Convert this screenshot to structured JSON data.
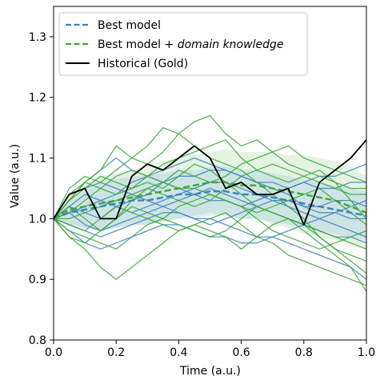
{
  "chart_data": {
    "type": "line",
    "xlabel": "Time (a.u.)",
    "ylabel": "Value (a.u.)",
    "xlim": [
      0.0,
      1.0
    ],
    "ylim": [
      0.8,
      1.35
    ],
    "xticks": [
      "0.0",
      "0.2",
      "0.4",
      "0.6",
      "0.8",
      "1.0"
    ],
    "yticks": [
      "0.8",
      "0.9",
      "1.0",
      "1.1",
      "1.2",
      "1.3"
    ],
    "grid": false,
    "legend_position": "top-left",
    "legend": [
      {
        "label": "Best model",
        "style": "dashed",
        "color": "#3b82c4"
      },
      {
        "label_main": "Best model + ",
        "label_italic": "domain knowledge",
        "style": "dashed",
        "color": "#3aa83a"
      },
      {
        "label": "Historical (Gold)",
        "style": "solid",
        "color": "#000000"
      }
    ],
    "colors": {
      "best_model": "#3b82c4",
      "best_model_domain": "#3aa83a",
      "historical": "#000000",
      "band_blue": "#9dc3e6",
      "band_green": "#a6d8a0"
    },
    "x": [
      0.0,
      0.05,
      0.1,
      0.15,
      0.2,
      0.25,
      0.3,
      0.35,
      0.4,
      0.45,
      0.5,
      0.55,
      0.6,
      0.65,
      0.7,
      0.75,
      0.8,
      0.85,
      0.9,
      0.95,
      1.0
    ],
    "series": [
      {
        "name": "Best model",
        "role": "mean",
        "values": [
          1.0,
          1.01,
          1.015,
          1.02,
          1.025,
          1.03,
          1.03,
          1.035,
          1.04,
          1.04,
          1.045,
          1.045,
          1.04,
          1.04,
          1.035,
          1.03,
          1.025,
          1.02,
          1.015,
          1.01,
          1.005
        ]
      },
      {
        "name": "Best model + domain knowledge",
        "role": "mean",
        "values": [
          1.0,
          1.015,
          1.02,
          1.025,
          1.03,
          1.035,
          1.04,
          1.045,
          1.05,
          1.055,
          1.06,
          1.06,
          1.055,
          1.055,
          1.05,
          1.045,
          1.04,
          1.035,
          1.03,
          1.02,
          1.01
        ]
      },
      {
        "name": "Historical (Gold)",
        "role": "actual",
        "values": [
          1.0,
          1.04,
          1.05,
          1.0,
          1.0,
          1.07,
          1.09,
          1.08,
          1.1,
          1.12,
          1.1,
          1.05,
          1.06,
          1.04,
          1.04,
          1.05,
          0.99,
          1.06,
          1.08,
          1.1,
          1.13
        ]
      }
    ],
    "band_blue": {
      "lower": [
        1.0,
        0.99,
        0.985,
        0.98,
        0.985,
        0.99,
        0.99,
        0.995,
        1.0,
        1.0,
        1.005,
        1.005,
        1.0,
        1.0,
        0.995,
        0.99,
        0.985,
        0.98,
        0.975,
        0.97,
        0.965
      ],
      "upper": [
        1.0,
        1.03,
        1.045,
        1.06,
        1.065,
        1.07,
        1.07,
        1.075,
        1.08,
        1.08,
        1.085,
        1.085,
        1.08,
        1.08,
        1.075,
        1.07,
        1.065,
        1.06,
        1.055,
        1.05,
        1.045
      ]
    },
    "band_green": {
      "lower": [
        1.0,
        0.99,
        0.985,
        0.98,
        0.985,
        0.99,
        0.99,
        0.995,
        1.0,
        1.005,
        1.01,
        1.005,
        1.0,
        1.0,
        0.99,
        0.985,
        0.975,
        0.97,
        0.965,
        0.955,
        0.95
      ],
      "upper": [
        1.0,
        1.04,
        1.055,
        1.07,
        1.075,
        1.08,
        1.09,
        1.095,
        1.1,
        1.105,
        1.11,
        1.115,
        1.11,
        1.11,
        1.11,
        1.105,
        1.105,
        1.1,
        1.095,
        1.085,
        1.07
      ]
    },
    "samples": [
      {
        "group": "Best model",
        "values": [
          1.0,
          1.01,
          1.02,
          1.03,
          1.04,
          1.06,
          1.07,
          1.08,
          1.09,
          1.1,
          1.09,
          1.08,
          1.07,
          1.06,
          1.06,
          1.05,
          1.06,
          1.05,
          1.05,
          1.06,
          1.06
        ]
      },
      {
        "group": "Best model",
        "values": [
          1.0,
          1.03,
          1.06,
          1.08,
          1.1,
          1.08,
          1.07,
          1.06,
          1.07,
          1.07,
          1.08,
          1.08,
          1.07,
          1.06,
          1.05,
          1.04,
          1.02,
          1.01,
          1.01,
          1.0,
          1.0
        ]
      },
      {
        "group": "Best model",
        "values": [
          1.0,
          0.99,
          0.98,
          0.97,
          0.98,
          0.99,
          1.0,
          1.01,
          1.01,
          1.0,
          1.0,
          0.99,
          0.98,
          0.97,
          0.97,
          0.96,
          0.95,
          0.94,
          0.93,
          0.92,
          0.9
        ]
      },
      {
        "group": "Best model",
        "values": [
          1.0,
          1.02,
          1.01,
          1.0,
          1.02,
          1.03,
          1.04,
          1.06,
          1.05,
          1.04,
          1.03,
          1.03,
          1.02,
          1.03,
          1.04,
          1.05,
          1.06,
          1.07,
          1.07,
          1.08,
          1.09
        ]
      },
      {
        "group": "Best model",
        "values": [
          1.0,
          0.98,
          0.96,
          0.95,
          0.96,
          0.97,
          0.98,
          0.99,
          0.99,
          0.98,
          0.97,
          0.97,
          0.96,
          0.96,
          0.97,
          0.98,
          0.99,
          1.0,
          1.01,
          1.02,
          1.03
        ]
      },
      {
        "group": "Best model",
        "values": [
          1.0,
          1.04,
          1.05,
          1.06,
          1.05,
          1.04,
          1.03,
          1.02,
          1.03,
          1.04,
          1.05,
          1.04,
          1.03,
          1.02,
          1.01,
          1.0,
          0.99,
          0.98,
          0.97,
          0.97,
          0.96
        ]
      },
      {
        "group": "Best model",
        "values": [
          1.0,
          1.01,
          0.99,
          0.98,
          0.99,
          1.0,
          1.01,
          1.02,
          1.01,
          1.0,
          0.99,
          1.0,
          1.01,
          1.02,
          1.03,
          1.03,
          1.02,
          1.02,
          1.03,
          1.03,
          1.02
        ]
      },
      {
        "group": "Best model",
        "values": [
          1.0,
          1.02,
          1.04,
          1.03,
          1.02,
          1.01,
          1.02,
          1.03,
          1.04,
          1.05,
          1.06,
          1.06,
          1.05,
          1.04,
          1.03,
          1.02,
          1.01,
          1.0,
          0.99,
          0.98,
          0.97
        ]
      },
      {
        "group": "Best model + domain knowledge",
        "values": [
          1.0,
          1.03,
          1.06,
          1.08,
          1.12,
          1.1,
          1.09,
          1.11,
          1.14,
          1.16,
          1.17,
          1.14,
          1.12,
          1.13,
          1.11,
          1.09,
          1.08,
          1.07,
          1.06,
          1.05,
          1.05
        ]
      },
      {
        "group": "Best model + domain knowledge",
        "values": [
          1.0,
          1.05,
          1.07,
          1.06,
          1.08,
          1.1,
          1.12,
          1.15,
          1.14,
          1.12,
          1.1,
          1.09,
          1.08,
          1.06,
          1.04,
          1.02,
          1.0,
          0.97,
          0.95,
          0.93,
          0.91
        ]
      },
      {
        "group": "Best model + domain knowledge",
        "values": [
          1.0,
          0.97,
          0.95,
          0.92,
          0.9,
          0.92,
          0.94,
          0.96,
          0.98,
          0.99,
          0.98,
          0.97,
          0.95,
          0.97,
          0.99,
          1.0,
          0.98,
          0.96,
          0.94,
          0.92,
          0.88
        ]
      },
      {
        "group": "Best model + domain knowledge",
        "values": [
          1.0,
          1.02,
          1.0,
          0.98,
          1.0,
          1.03,
          1.05,
          1.06,
          1.08,
          1.07,
          1.06,
          1.07,
          1.09,
          1.1,
          1.11,
          1.12,
          1.1,
          1.09,
          1.08,
          1.07,
          1.06
        ]
      },
      {
        "group": "Best model + domain knowledge",
        "values": [
          1.0,
          0.98,
          0.97,
          0.96,
          0.95,
          0.97,
          0.99,
          1.0,
          1.02,
          1.03,
          1.04,
          1.03,
          1.02,
          1.0,
          0.98,
          0.97,
          0.96,
          0.95,
          0.96,
          0.97,
          0.98
        ]
      },
      {
        "group": "Best model + domain knowledge",
        "values": [
          1.0,
          1.04,
          1.06,
          1.05,
          1.04,
          1.05,
          1.06,
          1.05,
          1.07,
          1.09,
          1.08,
          1.06,
          1.04,
          1.02,
          1.01,
          1.0,
          0.99,
          0.98,
          0.97,
          0.96,
          0.95
        ]
      },
      {
        "group": "Best model + domain knowledge",
        "values": [
          1.0,
          1.0,
          1.01,
          1.02,
          1.03,
          1.04,
          1.05,
          1.04,
          1.03,
          1.02,
          1.03,
          1.05,
          1.07,
          1.08,
          1.09,
          1.08,
          1.07,
          1.06,
          1.05,
          1.04,
          1.04
        ]
      },
      {
        "group": "Best model + domain knowledge",
        "values": [
          1.0,
          1.01,
          1.03,
          1.05,
          1.07,
          1.08,
          1.07,
          1.06,
          1.05,
          1.05,
          1.04,
          1.03,
          1.02,
          1.01,
          1.02,
          1.03,
          1.04,
          1.05,
          1.03,
          1.01,
          0.99
        ]
      },
      {
        "group": "Best model + domain knowledge",
        "values": [
          1.0,
          0.99,
          0.98,
          1.0,
          1.02,
          1.01,
          1.0,
          0.99,
          0.98,
          0.99,
          1.0,
          1.01,
          0.99,
          0.97,
          0.96,
          0.94,
          0.93,
          0.92,
          0.91,
          0.9,
          0.89
        ]
      },
      {
        "group": "Best model + domain knowledge",
        "values": [
          1.0,
          1.03,
          1.05,
          1.07,
          1.06,
          1.05,
          1.07,
          1.09,
          1.1,
          1.11,
          1.12,
          1.13,
          1.1,
          1.08,
          1.07,
          1.06,
          1.07,
          1.08,
          1.06,
          1.03,
          1.0
        ]
      },
      {
        "group": "Best model + domain knowledge",
        "values": [
          1.0,
          0.97,
          0.96,
          0.98,
          1.0,
          1.02,
          1.01,
          1.0,
          0.99,
          0.98,
          0.97,
          0.98,
          1.0,
          1.02,
          1.01,
          1.0,
          0.99,
          0.97,
          0.95,
          0.94,
          0.93
        ]
      }
    ]
  }
}
